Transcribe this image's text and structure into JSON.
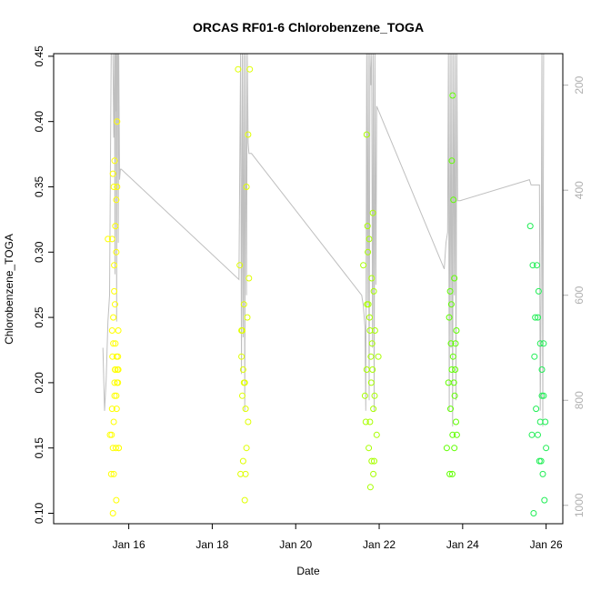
{
  "chart_data": {
    "type": "scatter",
    "title": "ORCAS RF01-6 Chlorobenzene_TOGA",
    "xlabel": "Date",
    "ylabel": "Chlorobenzene_TOGA",
    "x_unit": "day of January (fractional)",
    "xlim": [
      14.2,
      26.4
    ],
    "ylim": [
      0.092,
      0.452
    ],
    "yticks": [
      0.1,
      0.15,
      0.2,
      0.25,
      0.3,
      0.35,
      0.4,
      0.45
    ],
    "xticks": [
      {
        "value": 16,
        "label": "Jan 16"
      },
      {
        "value": 18,
        "label": "Jan 18"
      },
      {
        "value": 20,
        "label": "Jan 20"
      },
      {
        "value": 22,
        "label": "Jan 22"
      },
      {
        "value": 24,
        "label": "Jan 24"
      },
      {
        "value": 26,
        "label": "Jan 26"
      }
    ],
    "y2ticks": [
      200,
      400,
      600,
      800,
      1000
    ],
    "y2lim": [
      1035,
      140
    ],
    "y2_color": "#b0b0b0",
    "grid": false,
    "legend": "none",
    "series": [
      {
        "color": "#ffff00",
        "x": [
          15.5,
          15.55,
          15.6,
          15.62,
          15.64,
          15.66,
          15.68,
          15.7,
          15.72,
          15.75,
          15.65,
          15.58,
          15.63,
          15.67,
          15.71,
          15.74,
          15.6,
          15.69,
          15.73,
          15.66,
          15.62,
          15.7,
          15.76,
          15.64,
          15.68,
          15.72,
          15.61,
          15.65,
          15.7,
          15.75,
          15.63,
          15.67,
          15.59,
          15.71,
          15.66,
          15.62,
          15.74,
          15.68,
          15.7,
          15.64,
          15.76,
          15.72,
          15.6
        ],
        "y": [
          0.31,
          0.16,
          0.24,
          0.36,
          0.35,
          0.37,
          0.32,
          0.34,
          0.4,
          0.21,
          0.29,
          0.13,
          0.23,
          0.26,
          0.22,
          0.2,
          0.18,
          0.15,
          0.21,
          0.19,
          0.1,
          0.11,
          0.15,
          0.17,
          0.23,
          0.35,
          0.22,
          0.27,
          0.3,
          0.24,
          0.25,
          0.21,
          0.16,
          0.18,
          0.2,
          0.15,
          0.22,
          0.21,
          0.19,
          0.13,
          0.15,
          0.2,
          0.31
        ]
      },
      {
        "color": "#e0ff00",
        "x": [
          18.62,
          18.66,
          18.7,
          18.74,
          18.78,
          18.82,
          18.86,
          18.9,
          18.76,
          18.8,
          18.72,
          18.68,
          18.84,
          18.88,
          18.74,
          18.78,
          18.82,
          18.7,
          18.86,
          18.8,
          18.76,
          18.72
        ],
        "y": [
          0.44,
          0.29,
          0.24,
          0.21,
          0.2,
          0.35,
          0.39,
          0.44,
          0.2,
          0.18,
          0.19,
          0.13,
          0.25,
          0.28,
          0.14,
          0.11,
          0.15,
          0.22,
          0.17,
          0.13,
          0.26,
          0.24
        ]
      },
      {
        "color": "#a8ff00",
        "x": [
          21.62,
          21.66,
          21.7,
          21.72,
          21.74,
          21.76,
          21.78,
          21.8,
          21.82,
          21.84,
          21.86,
          21.88,
          21.9,
          21.94,
          21.98,
          21.68,
          21.73,
          21.77,
          21.81,
          21.85,
          21.89,
          21.75,
          21.79,
          21.83,
          21.87,
          21.71,
          21.7,
          21.78,
          21.82,
          21.86
        ],
        "y": [
          0.29,
          0.19,
          0.39,
          0.32,
          0.26,
          0.31,
          0.24,
          0.22,
          0.28,
          0.21,
          0.18,
          0.14,
          0.24,
          0.16,
          0.22,
          0.17,
          0.3,
          0.25,
          0.2,
          0.33,
          0.19,
          0.15,
          0.12,
          0.23,
          0.27,
          0.26,
          0.21,
          0.17,
          0.14,
          0.13
        ]
      },
      {
        "color": "#60ff00",
        "x": [
          23.62,
          23.66,
          23.7,
          23.72,
          23.74,
          23.76,
          23.78,
          23.8,
          23.82,
          23.84,
          23.86,
          23.68,
          23.73,
          23.77,
          23.81,
          23.85,
          23.75,
          23.79,
          23.71,
          23.69,
          23.83,
          23.74,
          23.76,
          23.8
        ],
        "y": [
          0.15,
          0.2,
          0.27,
          0.23,
          0.37,
          0.42,
          0.34,
          0.28,
          0.21,
          0.17,
          0.16,
          0.25,
          0.26,
          0.22,
          0.19,
          0.24,
          0.13,
          0.2,
          0.18,
          0.13,
          0.23,
          0.21,
          0.16,
          0.15
        ]
      },
      {
        "color": "#20ee55",
        "x": [
          25.62,
          25.68,
          25.74,
          25.78,
          25.82,
          25.86,
          25.9,
          25.94,
          25.98,
          26.0,
          25.72,
          25.76,
          25.8,
          25.84,
          25.88,
          25.92,
          25.96,
          25.7,
          25.66,
          25.86,
          25.9,
          25.94,
          25.8
        ],
        "y": [
          0.32,
          0.29,
          0.25,
          0.29,
          0.27,
          0.23,
          0.21,
          0.19,
          0.17,
          0.15,
          0.22,
          0.18,
          0.16,
          0.14,
          0.14,
          0.13,
          0.11,
          0.1,
          0.16,
          0.17,
          0.19,
          0.23,
          0.25
        ]
      }
    ],
    "altitude_trace": {
      "color": "#bfbfbf",
      "x": [
        15.38,
        15.42,
        15.46,
        15.5,
        15.54,
        15.58,
        15.62,
        15.64,
        15.66,
        15.67,
        15.68,
        15.69,
        15.7,
        15.71,
        15.72,
        15.73,
        15.74,
        15.75,
        15.76,
        15.78,
        15.8,
        15.82,
        18.64,
        18.68,
        18.7,
        18.72,
        18.74,
        18.76,
        18.78,
        18.8,
        18.82,
        18.84,
        18.86,
        18.88,
        18.9,
        18.92,
        18.94,
        21.58,
        21.62,
        21.66,
        21.68,
        21.7,
        21.72,
        21.74,
        21.76,
        21.78,
        21.8,
        21.82,
        21.84,
        21.86,
        21.88,
        21.9,
        21.92,
        21.94,
        23.56,
        23.6,
        23.64,
        23.66,
        23.68,
        23.7,
        23.72,
        23.74,
        23.76,
        23.78,
        23.8,
        23.82,
        23.84,
        23.86,
        23.88,
        23.9,
        23.92,
        23.94,
        25.6,
        25.64,
        25.68,
        25.72,
        25.76,
        25.8,
        25.84,
        25.86,
        25.88,
        25.9,
        25.92,
        25.94
      ],
      "y": [
        700,
        820,
        760,
        650,
        600,
        140,
        140,
        300,
        140,
        560,
        140,
        250,
        140,
        650,
        140,
        200,
        140,
        500,
        140,
        380,
        360,
        360,
        570,
        140,
        750,
        140,
        680,
        140,
        820,
        140,
        600,
        140,
        310,
        330,
        330,
        330,
        330,
        600,
        620,
        660,
        820,
        140,
        620,
        140,
        800,
        140,
        200,
        140,
        700,
        140,
        820,
        140,
        580,
        240,
        550,
        500,
        480,
        140,
        820,
        140,
        700,
        140,
        850,
        140,
        600,
        140,
        800,
        140,
        420,
        420,
        420,
        420,
        380,
        390,
        390,
        390,
        390,
        390,
        390,
        820,
        600,
        140,
        850,
        140
      ]
    }
  }
}
